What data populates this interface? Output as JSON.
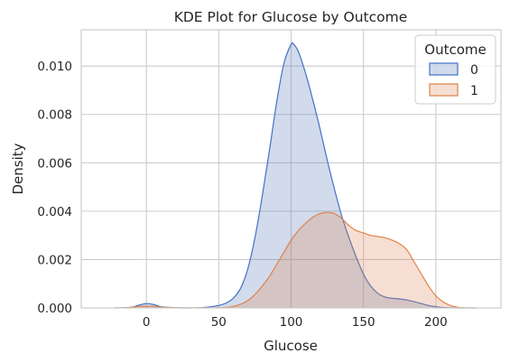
{
  "chart_data": {
    "type": "area",
    "title": "KDE Plot for Glucose by Outcome",
    "xlabel": "Glucose",
    "ylabel": "Density",
    "xlim": [
      -45,
      245
    ],
    "ylim": [
      0,
      0.0115
    ],
    "x_ticks": [
      0,
      50,
      100,
      150,
      200
    ],
    "x_tick_labels": [
      "0",
      "50",
      "100",
      "150",
      "200"
    ],
    "y_ticks": [
      0,
      0.002,
      0.004,
      0.006,
      0.008,
      0.01
    ],
    "y_tick_labels": [
      "0.000",
      "0.002",
      "0.004",
      "0.006",
      "0.008",
      "0.010"
    ],
    "grid": true,
    "legend": {
      "title": "Outcome",
      "placement": "top-right",
      "entries": [
        "0",
        "1"
      ]
    },
    "series": [
      {
        "name": "0",
        "color": "#4c72b0",
        "line_color": "#4470c8",
        "x": [
          -22,
          -10,
          -5,
          0,
          5,
          10,
          20,
          30,
          40,
          50,
          55,
          60,
          65,
          70,
          75,
          80,
          85,
          90,
          95,
          100,
          102,
          105,
          110,
          115,
          120,
          125,
          130,
          135,
          140,
          145,
          150,
          155,
          160,
          165,
          170,
          175,
          180,
          185,
          190,
          195,
          200,
          205,
          210,
          215,
          220,
          228
        ],
        "y": [
          0,
          3e-05,
          0.00012,
          0.00018,
          0.00014,
          5e-05,
          1e-05,
          0,
          2e-05,
          0.0001,
          0.0002,
          0.0004,
          0.0008,
          0.0016,
          0.0029,
          0.0046,
          0.0065,
          0.0085,
          0.0101,
          0.0109,
          0.01088,
          0.0106,
          0.0097,
          0.0086,
          0.0074,
          0.0061,
          0.0049,
          0.0038,
          0.0029,
          0.0021,
          0.0014,
          0.0009,
          0.0006,
          0.00045,
          0.0004,
          0.00037,
          0.00033,
          0.00026,
          0.00018,
          0.0001,
          5e-05,
          2e-05,
          1e-05,
          0,
          0,
          0
        ]
      },
      {
        "name": "1",
        "color": "#dd8452",
        "line_color": "#e0824a",
        "x": [
          -15,
          -10,
          -5,
          0,
          5,
          10,
          20,
          40,
          55,
          60,
          65,
          70,
          75,
          80,
          85,
          90,
          95,
          100,
          105,
          110,
          115,
          120,
          125,
          130,
          135,
          140,
          145,
          150,
          155,
          160,
          165,
          170,
          175,
          180,
          185,
          190,
          195,
          200,
          205,
          210,
          215,
          220
        ],
        "y": [
          0,
          3e-05,
          6e-05,
          7e-05,
          6e-05,
          3e-05,
          1e-05,
          0,
          2e-05,
          6e-05,
          0.00015,
          0.0003,
          0.00055,
          0.0009,
          0.0013,
          0.0018,
          0.0023,
          0.0028,
          0.0032,
          0.0035,
          0.00375,
          0.0039,
          0.00395,
          0.0039,
          0.0037,
          0.0034,
          0.0032,
          0.0031,
          0.003,
          0.00295,
          0.0029,
          0.0028,
          0.00265,
          0.0024,
          0.0019,
          0.0014,
          0.0009,
          0.0005,
          0.00025,
          0.0001,
          3e-05,
          0
        ]
      }
    ]
  }
}
